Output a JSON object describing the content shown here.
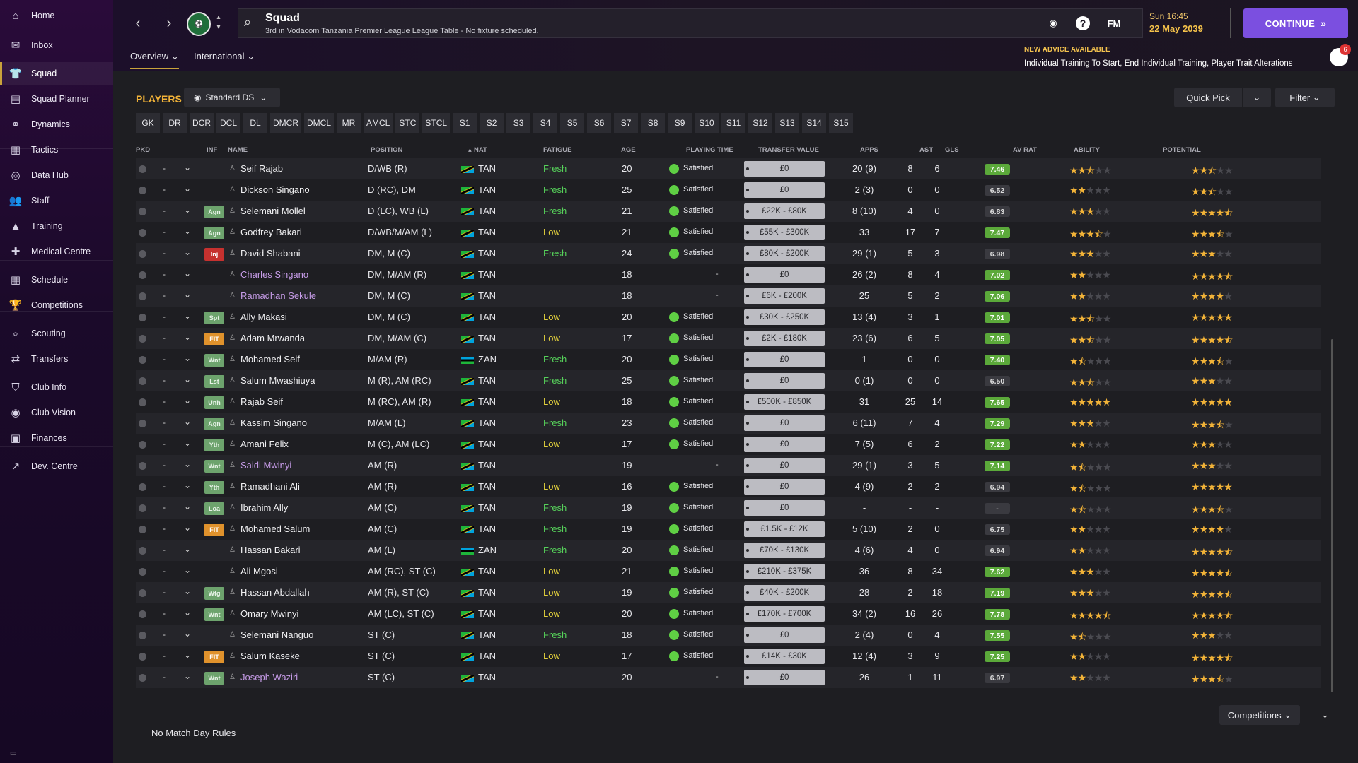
{
  "sidebar": {
    "items": [
      {
        "label": "Home",
        "icon": "home-icon",
        "glyph": "⌂"
      },
      {
        "label": "Inbox",
        "icon": "inbox-icon",
        "glyph": "✉"
      },
      {
        "label": "Squad",
        "icon": "squad-icon",
        "glyph": "👕",
        "active": true
      },
      {
        "label": "Squad Planner",
        "icon": "squad-planner-icon",
        "glyph": "▤"
      },
      {
        "label": "Dynamics",
        "icon": "dynamics-icon",
        "glyph": "⚭"
      },
      {
        "label": "Tactics",
        "icon": "tactics-icon",
        "glyph": "▦"
      },
      {
        "label": "Data Hub",
        "icon": "data-hub-icon",
        "glyph": "◎"
      },
      {
        "label": "Staff",
        "icon": "staff-icon",
        "glyph": "👥"
      },
      {
        "label": "Training",
        "icon": "training-icon",
        "glyph": "▲"
      },
      {
        "label": "Medical Centre",
        "icon": "medical-centre-icon",
        "glyph": "✚"
      },
      {
        "label": "Schedule",
        "icon": "schedule-icon",
        "glyph": "▦"
      },
      {
        "label": "Competitions",
        "icon": "competitions-icon",
        "glyph": "🏆"
      },
      {
        "label": "Scouting",
        "icon": "scouting-icon",
        "glyph": "⌕"
      },
      {
        "label": "Transfers",
        "icon": "transfers-icon",
        "glyph": "⇄"
      },
      {
        "label": "Club Info",
        "icon": "club-info-icon",
        "glyph": "⛉"
      },
      {
        "label": "Club Vision",
        "icon": "club-vision-icon",
        "glyph": "◉"
      },
      {
        "label": "Finances",
        "icon": "finances-icon",
        "glyph": "▣"
      },
      {
        "label": "Dev. Centre",
        "icon": "dev-centre-icon",
        "glyph": "↗"
      }
    ],
    "footer": "▭"
  },
  "header": {
    "title": "Squad",
    "subtitle": "3rd in Vodacom Tanzania Premier League League Table - No fixture scheduled.",
    "time": "Sun 16:45",
    "date": "22 May 2039",
    "continue_label": "CONTINUE",
    "fm_label": "FM",
    "tabs": [
      {
        "label": "Overview",
        "active": true
      },
      {
        "label": "International",
        "active": false
      }
    ],
    "advice_title": "NEW ADVICE AVAILABLE",
    "advice_text": "Individual Training To Start, End Individual Training, Player Trait Alterations",
    "advice_count": "6"
  },
  "toolbar": {
    "players_label": "PLAYERS",
    "view_label": "Standard DS",
    "quick_pick_label": "Quick Pick",
    "filter_label": "Filter",
    "positions": [
      "GK",
      "DR",
      "DCR",
      "DCL",
      "DL",
      "DMCR",
      "DMCL",
      "MR",
      "AMCL",
      "STC",
      "STCL",
      "S1",
      "S2",
      "S3",
      "S4",
      "S5",
      "S6",
      "S7",
      "S8",
      "S9",
      "S10",
      "S11",
      "S12",
      "S13",
      "S14",
      "S15"
    ]
  },
  "table": {
    "headers": {
      "pkd": "PKD",
      "inf": "INF",
      "name": "NAME",
      "position": "POSITION",
      "nat": "NAT",
      "fatigue": "FATIGUE",
      "age": "AGE",
      "playing_time": "PLAYING TIME",
      "transfer_value": "TRANSFER VALUE",
      "apps": "APPS",
      "ast": "AST",
      "gls": "GLS",
      "av_rat": "AV RAT",
      "ability": "ABILITY",
      "potential": "POTENTIAL"
    },
    "rows": [
      {
        "name": "Seif Rajab",
        "pos": "D/WB (R)",
        "nat": "TAN",
        "fat": "Fresh",
        "age": "20",
        "pt": "Satisfied",
        "tv": "£0",
        "apps": "20 (9)",
        "ast": "8",
        "gls": "6",
        "rat": "7.46",
        "ab": 2.5,
        "pot": 2.5,
        "inf": "",
        "loan": false
      },
      {
        "name": "Dickson Singano",
        "pos": "D (RC), DM",
        "nat": "TAN",
        "fat": "Fresh",
        "age": "25",
        "pt": "Satisfied",
        "tv": "£0",
        "apps": "2 (3)",
        "ast": "0",
        "gls": "0",
        "rat": "6.52",
        "ab": 2,
        "pot": 2.5,
        "inf": "",
        "loan": false
      },
      {
        "name": "Selemani Mollel",
        "pos": "D (LC), WB (L)",
        "nat": "TAN",
        "fat": "Fresh",
        "age": "21",
        "pt": "Satisfied",
        "tv": "£22K - £80K",
        "apps": "8 (10)",
        "ast": "4",
        "gls": "0",
        "rat": "6.83",
        "ab": 3,
        "pot": 4.5,
        "inf": "Agn",
        "loan": false
      },
      {
        "name": "Godfrey Bakari",
        "pos": "D/WB/M/AM (L)",
        "nat": "TAN",
        "fat": "Low",
        "age": "21",
        "pt": "Satisfied",
        "tv": "£55K - £300K",
        "apps": "33",
        "ast": "17",
        "gls": "7",
        "rat": "7.47",
        "ab": 3.5,
        "pot": 3.5,
        "inf": "Agn",
        "loan": false
      },
      {
        "name": "David Shabani",
        "pos": "DM, M (C)",
        "nat": "TAN",
        "fat": "Fresh",
        "age": "24",
        "pt": "Satisfied",
        "tv": "£80K - £200K",
        "apps": "29 (1)",
        "ast": "5",
        "gls": "3",
        "rat": "6.98",
        "ab": 3,
        "pot": 3,
        "inf": "Inj",
        "loan": false
      },
      {
        "name": "Charles Singano",
        "pos": "DM, M/AM (R)",
        "nat": "TAN",
        "fat": "",
        "age": "18",
        "pt": "-",
        "tv": "£0",
        "apps": "26 (2)",
        "ast": "8",
        "gls": "4",
        "rat": "7.02",
        "ab": 2,
        "pot": 4.5,
        "inf": "",
        "loan": true
      },
      {
        "name": "Ramadhan Sekule",
        "pos": "DM, M (C)",
        "nat": "TAN",
        "fat": "",
        "age": "18",
        "pt": "-",
        "tv": "£6K - £200K",
        "apps": "25",
        "ast": "5",
        "gls": "2",
        "rat": "7.06",
        "ab": 2,
        "pot": 4,
        "inf": "",
        "loan": true
      },
      {
        "name": "Ally Makasi",
        "pos": "DM, M (C)",
        "nat": "TAN",
        "fat": "Low",
        "age": "20",
        "pt": "Satisfied",
        "tv": "£30K - £250K",
        "apps": "13 (4)",
        "ast": "3",
        "gls": "1",
        "rat": "7.01",
        "ab": 2.5,
        "pot": 5,
        "inf": "Spt",
        "loan": false
      },
      {
        "name": "Adam Mrwanda",
        "pos": "DM, M/AM (C)",
        "nat": "TAN",
        "fat": "Low",
        "age": "17",
        "pt": "Satisfied",
        "tv": "£2K - £180K",
        "apps": "23 (6)",
        "ast": "6",
        "gls": "5",
        "rat": "7.05",
        "ab": 2.5,
        "pot": 4.5,
        "inf": "FIT",
        "loan": false
      },
      {
        "name": "Mohamed Seif",
        "pos": "M/AM (R)",
        "nat": "ZAN",
        "fat": "Fresh",
        "age": "20",
        "pt": "Satisfied",
        "tv": "£0",
        "apps": "1",
        "ast": "0",
        "gls": "0",
        "rat": "7.40",
        "ab": 1.5,
        "pot": 3.5,
        "inf": "Wnt",
        "loan": false
      },
      {
        "name": "Salum Mwashiuya",
        "pos": "M (R), AM (RC)",
        "nat": "TAN",
        "fat": "Fresh",
        "age": "25",
        "pt": "Satisfied",
        "tv": "£0",
        "apps": "0 (1)",
        "ast": "0",
        "gls": "0",
        "rat": "6.50",
        "ab": 2.5,
        "pot": 3,
        "inf": "Lst",
        "loan": false
      },
      {
        "name": "Rajab Seif",
        "pos": "M (RC), AM (R)",
        "nat": "TAN",
        "fat": "Low",
        "age": "18",
        "pt": "Satisfied",
        "tv": "£500K - £850K",
        "apps": "31",
        "ast": "25",
        "gls": "14",
        "rat": "7.65",
        "ab": 5,
        "pot": 5,
        "inf": "Unh",
        "loan": false
      },
      {
        "name": "Kassim Singano",
        "pos": "M/AM (L)",
        "nat": "TAN",
        "fat": "Fresh",
        "age": "23",
        "pt": "Satisfied",
        "tv": "£0",
        "apps": "6 (11)",
        "ast": "7",
        "gls": "4",
        "rat": "7.29",
        "ab": 3,
        "pot": 3.5,
        "inf": "Agn",
        "loan": false
      },
      {
        "name": "Amani Felix",
        "pos": "M (C), AM (LC)",
        "nat": "TAN",
        "fat": "Low",
        "age": "17",
        "pt": "Satisfied",
        "tv": "£0",
        "apps": "7 (5)",
        "ast": "6",
        "gls": "2",
        "rat": "7.22",
        "ab": 2,
        "pot": 3,
        "inf": "Yth",
        "loan": false
      },
      {
        "name": "Saidi Mwinyi",
        "pos": "AM (R)",
        "nat": "TAN",
        "fat": "",
        "age": "19",
        "pt": "-",
        "tv": "£0",
        "apps": "29 (1)",
        "ast": "3",
        "gls": "5",
        "rat": "7.14",
        "ab": 1.5,
        "pot": 3,
        "inf": "Wnt",
        "loan": true
      },
      {
        "name": "Ramadhani Ali",
        "pos": "AM (R)",
        "nat": "TAN",
        "fat": "Low",
        "age": "16",
        "pt": "Satisfied",
        "tv": "£0",
        "apps": "4 (9)",
        "ast": "2",
        "gls": "2",
        "rat": "6.94",
        "ab": 1.5,
        "pot": 5,
        "inf": "Yth",
        "loan": false
      },
      {
        "name": "Ibrahim Ally",
        "pos": "AM (C)",
        "nat": "TAN",
        "fat": "Fresh",
        "age": "19",
        "pt": "Satisfied",
        "tv": "£0",
        "apps": "-",
        "ast": "-",
        "gls": "-",
        "rat": "-",
        "ab": 1.5,
        "pot": 3.5,
        "inf": "Loa",
        "loan": false
      },
      {
        "name": "Mohamed Salum",
        "pos": "AM (C)",
        "nat": "TAN",
        "fat": "Fresh",
        "age": "19",
        "pt": "Satisfied",
        "tv": "£1.5K - £12K",
        "apps": "5 (10)",
        "ast": "2",
        "gls": "0",
        "rat": "6.75",
        "ab": 2,
        "pot": 4,
        "inf": "FIT",
        "loan": false
      },
      {
        "name": "Hassan Bakari",
        "pos": "AM (L)",
        "nat": "ZAN",
        "fat": "Fresh",
        "age": "20",
        "pt": "Satisfied",
        "tv": "£70K - £130K",
        "apps": "4 (6)",
        "ast": "4",
        "gls": "0",
        "rat": "6.94",
        "ab": 2,
        "pot": 4.5,
        "inf": "",
        "loan": false
      },
      {
        "name": "Ali Mgosi",
        "pos": "AM (RC), ST (C)",
        "nat": "TAN",
        "fat": "Low",
        "age": "21",
        "pt": "Satisfied",
        "tv": "£210K - £375K",
        "apps": "36",
        "ast": "8",
        "gls": "34",
        "rat": "7.62",
        "ab": 3,
        "pot": 4.5,
        "inf": "",
        "loan": false
      },
      {
        "name": "Hassan Abdallah",
        "pos": "AM (R), ST (C)",
        "nat": "TAN",
        "fat": "Low",
        "age": "19",
        "pt": "Satisfied",
        "tv": "£40K - £200K",
        "apps": "28",
        "ast": "2",
        "gls": "18",
        "rat": "7.19",
        "ab": 3,
        "pot": 4.5,
        "inf": "Wtg",
        "loan": false
      },
      {
        "name": "Omary Mwinyi",
        "pos": "AM (LC), ST (C)",
        "nat": "TAN",
        "fat": "Low",
        "age": "20",
        "pt": "Satisfied",
        "tv": "£170K - £700K",
        "apps": "34 (2)",
        "ast": "16",
        "gls": "26",
        "rat": "7.78",
        "ab": 4.5,
        "pot": 4.5,
        "inf": "Wnt",
        "loan": false
      },
      {
        "name": "Selemani Nanguo",
        "pos": "ST (C)",
        "nat": "TAN",
        "fat": "Fresh",
        "age": "18",
        "pt": "Satisfied",
        "tv": "£0",
        "apps": "2 (4)",
        "ast": "0",
        "gls": "4",
        "rat": "7.55",
        "ab": 1.5,
        "pot": 3,
        "inf": "",
        "loan": false
      },
      {
        "name": "Salum Kaseke",
        "pos": "ST (C)",
        "nat": "TAN",
        "fat": "Low",
        "age": "17",
        "pt": "Satisfied",
        "tv": "£14K - £30K",
        "apps": "12 (4)",
        "ast": "3",
        "gls": "9",
        "rat": "7.25",
        "ab": 2,
        "pot": 4.5,
        "inf": "FIT",
        "loan": false
      },
      {
        "name": "Joseph Waziri",
        "pos": "ST (C)",
        "nat": "TAN",
        "fat": "",
        "age": "20",
        "pt": "-",
        "tv": "£0",
        "apps": "26",
        "ast": "1",
        "gls": "11",
        "rat": "6.97",
        "ab": 2,
        "pot": 3.5,
        "inf": "Wnt",
        "loan": true
      }
    ]
  },
  "footer": {
    "no_match_day_rules": "No Match Day Rules",
    "competitions_label": "Competitions"
  }
}
